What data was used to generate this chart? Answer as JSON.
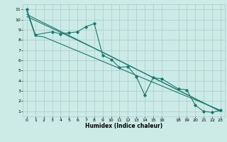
{
  "title": "",
  "xlabel": "Humidex (Indice chaleur)",
  "ylabel": "",
  "bg_color": "#cceae6",
  "grid_color": "#aacccc",
  "line_color": "#1a7a6e",
  "xlim_min": -0.5,
  "xlim_max": 23.5,
  "ylim_min": 0.5,
  "ylim_max": 11.5,
  "xticks": [
    0,
    1,
    2,
    3,
    4,
    5,
    6,
    7,
    8,
    9,
    10,
    11,
    12,
    13,
    14,
    15,
    16,
    18,
    19,
    20,
    21,
    22,
    23
  ],
  "yticks": [
    1,
    2,
    3,
    4,
    5,
    6,
    7,
    8,
    9,
    10,
    11
  ],
  "series1_x": [
    0,
    1,
    3,
    4,
    5,
    6,
    7,
    8,
    9,
    10,
    11,
    12,
    13,
    14,
    15,
    16,
    18,
    19,
    20,
    21,
    22,
    23
  ],
  "series1_y": [
    11,
    8.5,
    8.8,
    8.6,
    8.7,
    8.8,
    9.3,
    9.6,
    6.5,
    6.1,
    5.3,
    5.4,
    4.4,
    2.6,
    4.3,
    4.2,
    3.2,
    3.1,
    1.6,
    1.0,
    0.9,
    1.1
  ],
  "series2_x": [
    0,
    1,
    2,
    23
  ],
  "series2_y": [
    10.8,
    8.4,
    8.3,
    1.1
  ],
  "series3_x": [
    0,
    23
  ],
  "series3_y": [
    10.5,
    1.0
  ],
  "series4_x": [
    0,
    9,
    23
  ],
  "series4_y": [
    10.3,
    6.8,
    1.0
  ],
  "xlabel_fontsize": 5.5,
  "tick_fontsize": 4.5,
  "linewidth": 0.8,
  "markersize": 1.8
}
